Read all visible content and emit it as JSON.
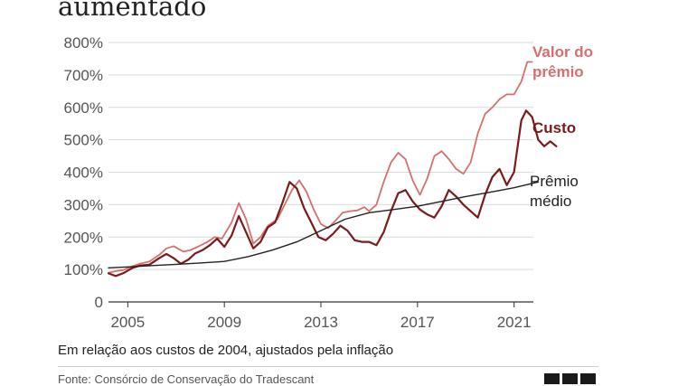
{
  "header": {
    "title": "aumentado"
  },
  "footer": {
    "note": "Em relação aos custos de 2004, ajustados pela inflação",
    "source": "Fonte: Consórcio de Conservação do Tradescant",
    "logo_text": "BBC"
  },
  "colors": {
    "valor": "#d4706e",
    "custo": "#7a1a1a",
    "premio": "#222222",
    "grid": "#d9d9d9",
    "baseline": "#333333",
    "tick": "#555555"
  },
  "chart_data": {
    "type": "line",
    "xlim": [
      2004.2,
      2021.5
    ],
    "ylim": [
      0,
      800
    ],
    "xticks": [
      {
        "value": 2005,
        "label": "2005"
      },
      {
        "value": 2009,
        "label": "2009"
      },
      {
        "value": 2013,
        "label": "2013"
      },
      {
        "value": 2017,
        "label": "2017"
      },
      {
        "value": 2021,
        "label": "2021"
      }
    ],
    "yticks": [
      {
        "value": 0,
        "label": "0"
      },
      {
        "value": 100,
        "label": "100%"
      },
      {
        "value": 200,
        "label": "200%"
      },
      {
        "value": 300,
        "label": "300%"
      },
      {
        "value": 400,
        "label": "400%"
      },
      {
        "value": 500,
        "label": "500%"
      },
      {
        "value": 600,
        "label": "600%"
      },
      {
        "value": 700,
        "label": "700%"
      },
      {
        "value": 800,
        "label": "800%"
      }
    ],
    "grid": true,
    "series": [
      {
        "name": "Valor do prêmio",
        "label_lines": [
          "Valor do",
          "prêmio"
        ],
        "color": "#d4706e",
        "points": [
          [
            2004.2,
            90
          ],
          [
            2004.5,
            95
          ],
          [
            2004.8,
            98
          ],
          [
            2005.2,
            110
          ],
          [
            2005.5,
            118
          ],
          [
            2005.9,
            125
          ],
          [
            2006.3,
            145
          ],
          [
            2006.6,
            165
          ],
          [
            2006.9,
            172
          ],
          [
            2007.3,
            155
          ],
          [
            2007.6,
            160
          ],
          [
            2007.9,
            170
          ],
          [
            2008.3,
            185
          ],
          [
            2008.6,
            200
          ],
          [
            2008.9,
            195
          ],
          [
            2009.3,
            245
          ],
          [
            2009.6,
            305
          ],
          [
            2009.9,
            255
          ],
          [
            2010.2,
            180
          ],
          [
            2010.5,
            200
          ],
          [
            2010.8,
            235
          ],
          [
            2011.2,
            255
          ],
          [
            2011.5,
            300
          ],
          [
            2011.8,
            345
          ],
          [
            2012.1,
            375
          ],
          [
            2012.4,
            340
          ],
          [
            2012.7,
            285
          ],
          [
            2013.0,
            240
          ],
          [
            2013.3,
            228
          ],
          [
            2013.6,
            250
          ],
          [
            2013.9,
            275
          ],
          [
            2014.2,
            280
          ],
          [
            2014.5,
            282
          ],
          [
            2014.8,
            292
          ],
          [
            2015.0,
            280
          ],
          [
            2015.3,
            300
          ],
          [
            2015.6,
            370
          ],
          [
            2015.9,
            430
          ],
          [
            2016.2,
            460
          ],
          [
            2016.5,
            440
          ],
          [
            2016.8,
            375
          ],
          [
            2017.1,
            330
          ],
          [
            2017.4,
            380
          ],
          [
            2017.7,
            450
          ],
          [
            2018.0,
            465
          ],
          [
            2018.3,
            440
          ],
          [
            2018.6,
            410
          ],
          [
            2018.9,
            395
          ],
          [
            2019.2,
            430
          ],
          [
            2019.5,
            520
          ],
          [
            2019.8,
            580
          ],
          [
            2020.1,
            600
          ],
          [
            2020.4,
            625
          ],
          [
            2020.7,
            640
          ],
          [
            2021.0,
            640
          ],
          [
            2021.3,
            680
          ],
          [
            2021.55,
            740
          ],
          [
            2021.75,
            740
          ]
        ]
      },
      {
        "name": "Custo",
        "label_lines": [
          "Custo"
        ],
        "color": "#7a1a1a",
        "points": [
          [
            2004.2,
            88
          ],
          [
            2004.5,
            80
          ],
          [
            2004.8,
            88
          ],
          [
            2005.2,
            105
          ],
          [
            2005.5,
            112
          ],
          [
            2005.9,
            115
          ],
          [
            2006.3,
            135
          ],
          [
            2006.6,
            148
          ],
          [
            2006.9,
            135
          ],
          [
            2007.2,
            118
          ],
          [
            2007.5,
            130
          ],
          [
            2007.8,
            150
          ],
          [
            2008.1,
            160
          ],
          [
            2008.4,
            175
          ],
          [
            2008.7,
            195
          ],
          [
            2009.0,
            170
          ],
          [
            2009.3,
            205
          ],
          [
            2009.6,
            265
          ],
          [
            2009.9,
            215
          ],
          [
            2010.2,
            165
          ],
          [
            2010.5,
            185
          ],
          [
            2010.8,
            230
          ],
          [
            2011.1,
            245
          ],
          [
            2011.4,
            305
          ],
          [
            2011.7,
            370
          ],
          [
            2012.0,
            350
          ],
          [
            2012.3,
            290
          ],
          [
            2012.6,
            245
          ],
          [
            2012.9,
            200
          ],
          [
            2013.2,
            190
          ],
          [
            2013.5,
            210
          ],
          [
            2013.8,
            235
          ],
          [
            2014.1,
            220
          ],
          [
            2014.4,
            190
          ],
          [
            2014.7,
            185
          ],
          [
            2015.0,
            185
          ],
          [
            2015.3,
            175
          ],
          [
            2015.6,
            215
          ],
          [
            2015.9,
            280
          ],
          [
            2016.2,
            335
          ],
          [
            2016.5,
            345
          ],
          [
            2016.8,
            310
          ],
          [
            2017.1,
            285
          ],
          [
            2017.4,
            270
          ],
          [
            2017.7,
            260
          ],
          [
            2018.0,
            295
          ],
          [
            2018.3,
            345
          ],
          [
            2018.6,
            325
          ],
          [
            2018.9,
            300
          ],
          [
            2019.2,
            280
          ],
          [
            2019.5,
            260
          ],
          [
            2019.8,
            330
          ],
          [
            2020.1,
            385
          ],
          [
            2020.4,
            410
          ],
          [
            2020.7,
            360
          ],
          [
            2021.0,
            400
          ],
          [
            2021.3,
            560
          ],
          [
            2021.5,
            590
          ],
          [
            2021.75,
            570
          ],
          [
            2022.0,
            500
          ],
          [
            2022.25,
            480
          ],
          [
            2022.5,
            495
          ],
          [
            2022.75,
            480
          ]
        ]
      },
      {
        "name": "Prêmio médio",
        "label_lines": [
          "Prêmio",
          "médio"
        ],
        "color": "#222222",
        "points": [
          [
            2004.2,
            105
          ],
          [
            2005.0,
            108
          ],
          [
            2006.0,
            112
          ],
          [
            2007.0,
            116
          ],
          [
            2008.0,
            120
          ],
          [
            2009.0,
            125
          ],
          [
            2010.0,
            140
          ],
          [
            2011.0,
            160
          ],
          [
            2012.0,
            185
          ],
          [
            2013.0,
            220
          ],
          [
            2014.0,
            255
          ],
          [
            2015.0,
            275
          ],
          [
            2016.0,
            285
          ],
          [
            2017.0,
            295
          ],
          [
            2018.0,
            310
          ],
          [
            2019.0,
            325
          ],
          [
            2020.0,
            338
          ],
          [
            2021.0,
            352
          ],
          [
            2022.0,
            370
          ]
        ]
      }
    ]
  }
}
